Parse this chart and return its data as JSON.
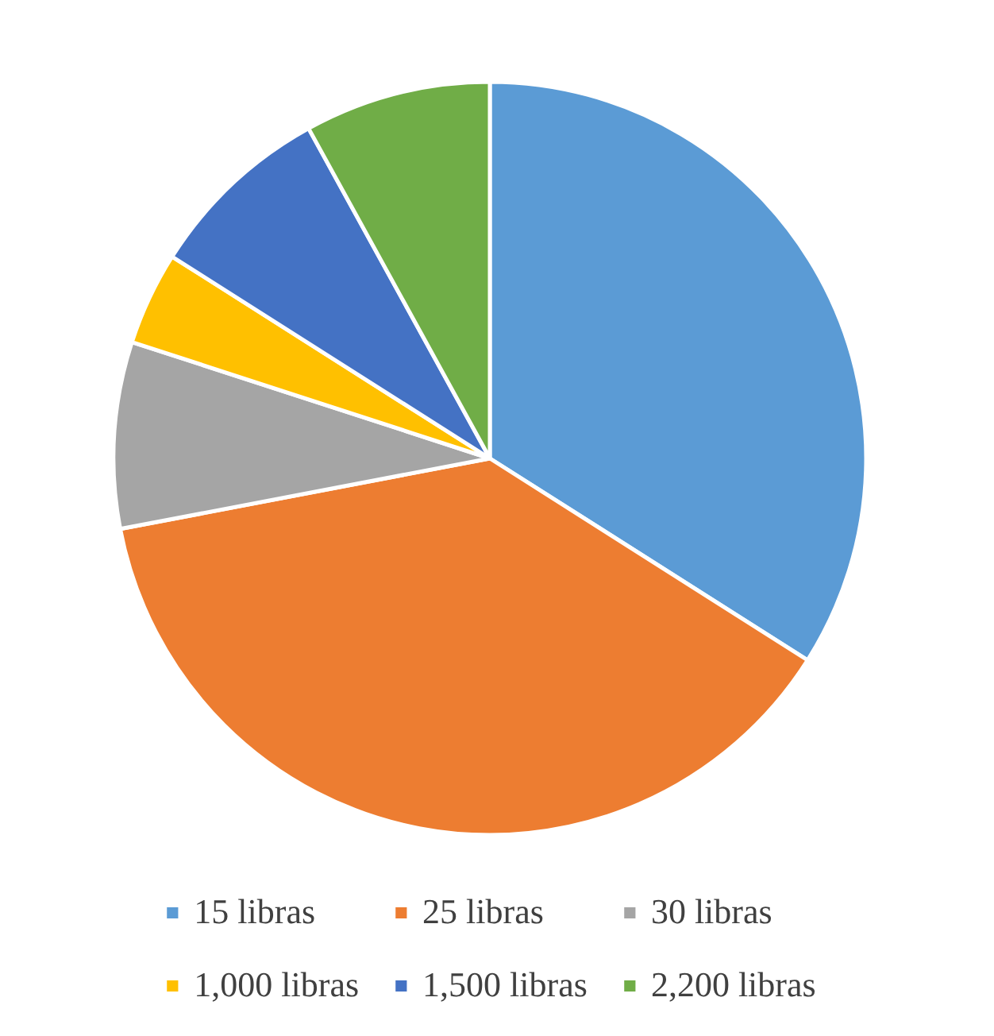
{
  "chart_data": {
    "type": "pie",
    "categories": [
      "15 libras",
      "25 libras",
      "30 libras",
      "1,000 libras",
      "1,500 libras",
      "2,200 libras"
    ],
    "values": [
      34,
      38,
      8,
      4,
      8,
      8
    ],
    "colors": [
      "#5b9bd5",
      "#ed7d31",
      "#a5a5a5",
      "#ffc000",
      "#4472c4",
      "#70ad47"
    ],
    "legend": "bottom"
  }
}
